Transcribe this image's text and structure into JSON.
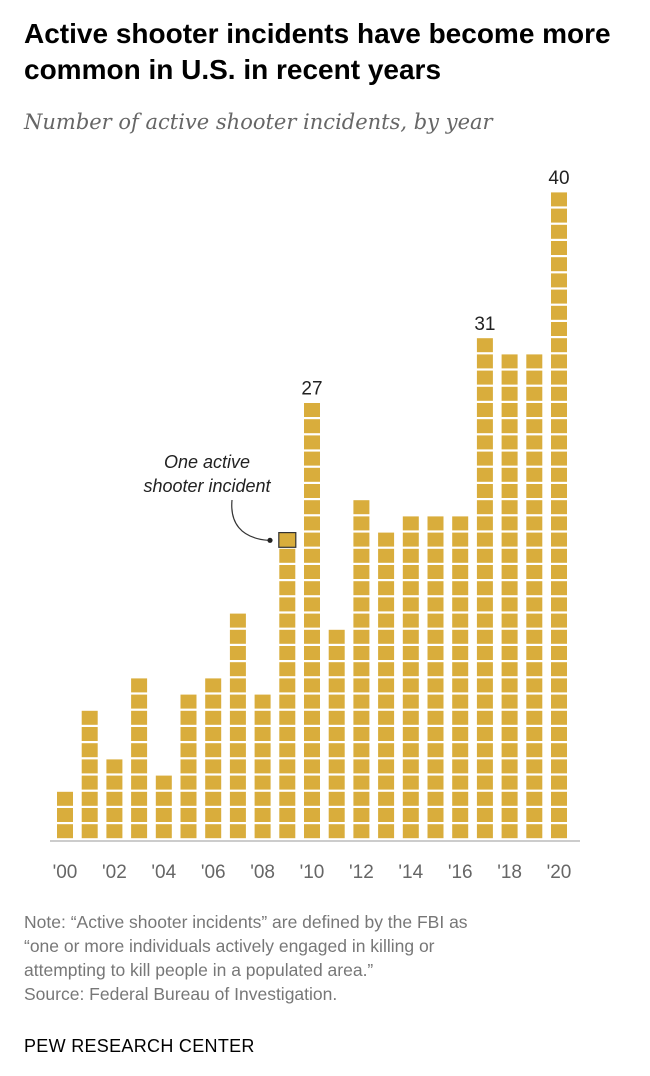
{
  "header": {
    "title": "Active shooter incidents have become more common in U.S. in recent years",
    "subtitle": "Number of active shooter incidents, by year"
  },
  "chart_data": {
    "type": "bar",
    "title": "Active shooter incidents have become more common in U.S. in recent years",
    "subtitle": "Number of active shooter incidents, by year",
    "categories": [
      "2000",
      "2001",
      "2002",
      "2003",
      "2004",
      "2005",
      "2006",
      "2007",
      "2008",
      "2009",
      "2010",
      "2011",
      "2012",
      "2013",
      "2014",
      "2015",
      "2016",
      "2017",
      "2018",
      "2019",
      "2020"
    ],
    "tick_labels": [
      "'00",
      "'02",
      "'04",
      "'06",
      "'08",
      "'10",
      "'12",
      "'14",
      "'16",
      "'18",
      "'20"
    ],
    "values": [
      3,
      8,
      5,
      10,
      4,
      9,
      10,
      14,
      9,
      19,
      27,
      13,
      21,
      19,
      20,
      20,
      20,
      31,
      30,
      30,
      40
    ],
    "value_labels": [
      {
        "category": "2010",
        "text": "27"
      },
      {
        "category": "2017",
        "text": "31"
      },
      {
        "category": "2020",
        "text": "40"
      }
    ],
    "annotation": {
      "text_lines": [
        "One active",
        "shooter incident"
      ],
      "category": "2009"
    },
    "ylim": [
      0,
      40
    ],
    "grid": false,
    "legend": "none",
    "bar_color": "#d9ad3c"
  },
  "footer": {
    "note_lines": [
      "Note: “Active shooter incidents” are defined by the FBI as",
      "“one or more individuals actively engaged in killing or",
      "attempting to kill people in a populated area.”"
    ],
    "source": "Source: Federal Bureau of Investigation.",
    "brand": "PEW RESEARCH CENTER"
  }
}
